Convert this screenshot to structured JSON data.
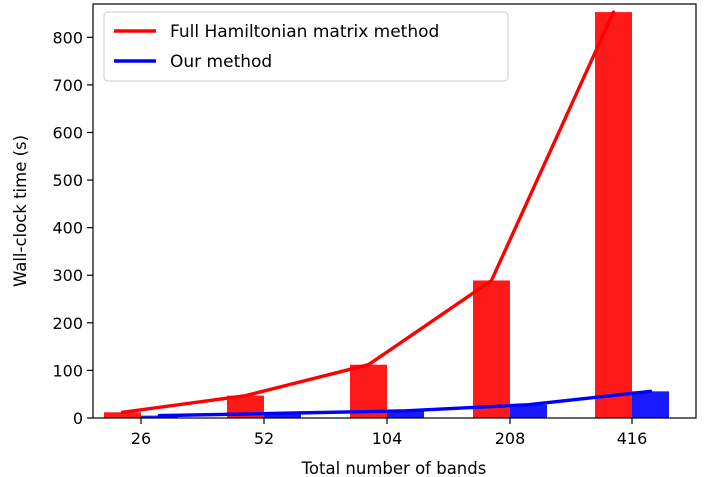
{
  "chart_data": {
    "type": "bar",
    "categories": [
      "26",
      "52",
      "104",
      "208",
      "416"
    ],
    "xlabel": "Total number of bands",
    "ylabel": "Wall-clock time (s)",
    "ylim": [
      0,
      870
    ],
    "yticks": [
      0,
      100,
      200,
      300,
      400,
      500,
      600,
      700,
      800
    ],
    "legend_position": "top-left",
    "grid": false,
    "series": [
      {
        "name": "Full Hamiltonian matrix method",
        "color": "#ff0000",
        "bar_color": "#ff1a1a",
        "values": [
          12,
          47,
          112,
          289,
          853
        ]
      },
      {
        "name": "Our method",
        "color": "#0000ff",
        "bar_color": "#1a1aff",
        "values": [
          5,
          10,
          15,
          28,
          56
        ]
      }
    ]
  }
}
